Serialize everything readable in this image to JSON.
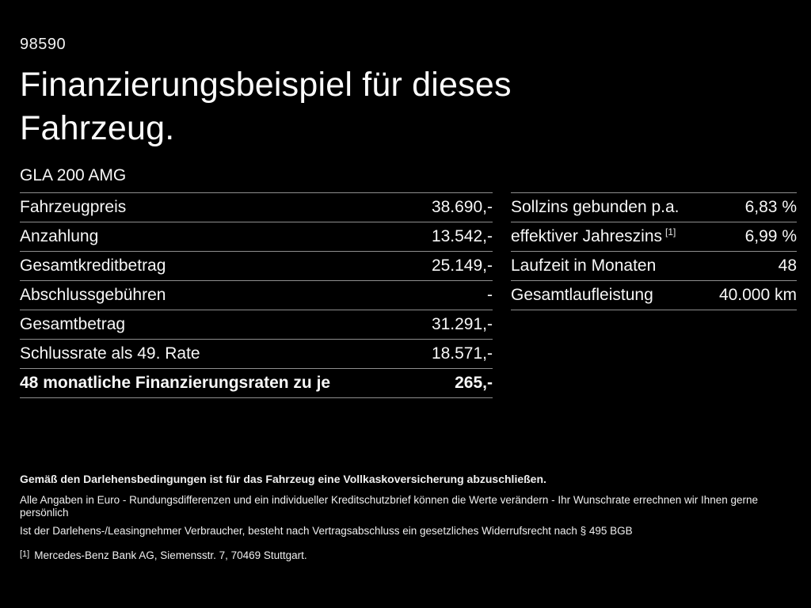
{
  "page": {
    "doc_number": "98590",
    "title_line1": "Finanzierungsbeispiel für dieses",
    "title_line2": "Fahrzeug.",
    "model": "GLA 200 AMG"
  },
  "finance_table": {
    "rows": [
      {
        "label": "Fahrzeugpreis",
        "value": "38.690,-"
      },
      {
        "label": "Anzahlung",
        "value": "13.542,-"
      },
      {
        "label": "Gesamtkreditbetrag",
        "value": "25.149,-"
      },
      {
        "label": "Abschlussgebühren",
        "value": "-"
      },
      {
        "label": "Gesamtbetrag",
        "value": "31.291,-"
      },
      {
        "label": "Schlussrate als 49. Rate",
        "value": "18.571,-"
      },
      {
        "label": "48 monatliche Finanzierungsraten zu je",
        "value": "265,-"
      }
    ]
  },
  "conditions_table": {
    "rows": [
      {
        "label": "Sollzins gebunden p.a.",
        "value": "6,83 %"
      },
      {
        "label": "effektiver Jahreszins",
        "footnote": "[1]",
        "value": "6,99 %"
      },
      {
        "label": "Laufzeit in Monaten",
        "value": "48"
      },
      {
        "label": "Gesamtlaufleistung",
        "value": "40.000 km"
      }
    ]
  },
  "footer": {
    "bold_note": "Gemäß den Darlehensbedingungen ist für das Fahrzeug eine Vollkaskoversicherung abzuschließen.",
    "note_line_1": "Alle Angaben in Euro - Rundungsdifferenzen und ein individueller Kreditschutzbrief können die Werte verändern - Ihr Wunschrate errechnen wir Ihnen gerne persönlich",
    "note_line_2": "Ist der Darlehens-/Leasingnehmer Verbraucher, besteht nach Vertragsabschluss ein gesetzliches Widerrufsrecht nach § 495 BGB",
    "footnote_marker": "[1]",
    "footnote_text": "Mercedes-Benz Bank AG, Siemensstr. 7, 70469 Stuttgart."
  },
  "colors": {
    "background": "#000000",
    "text": "#f7f7f7",
    "divider": "#8f8f8f"
  }
}
